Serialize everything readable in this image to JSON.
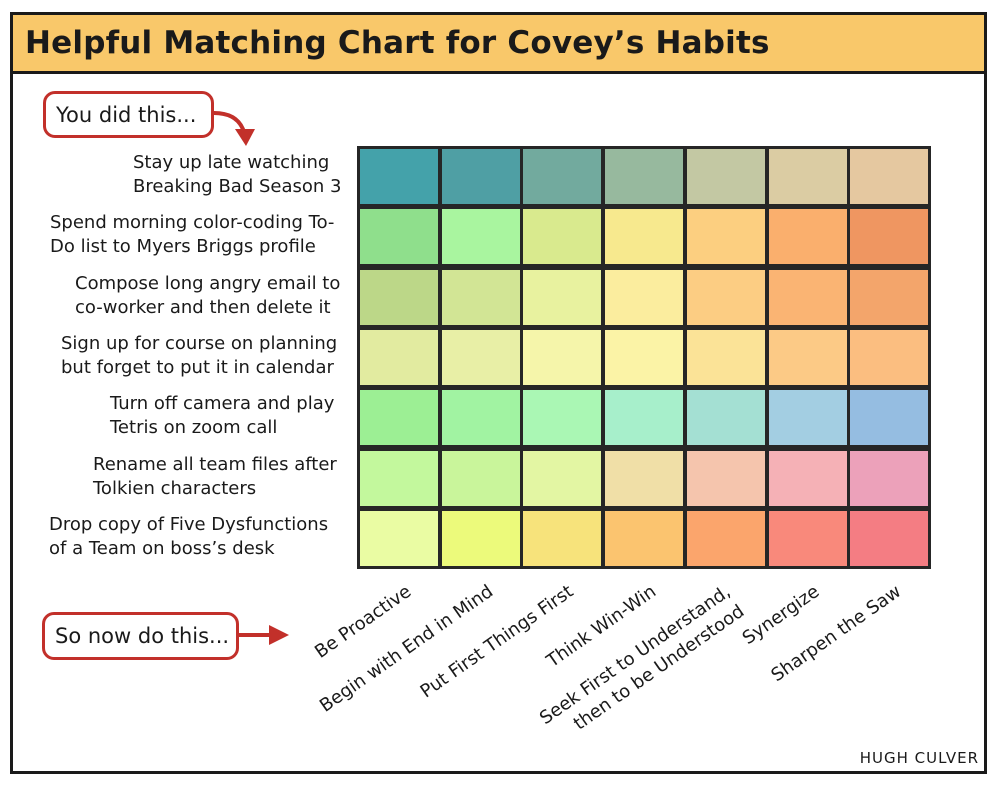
{
  "title": "Helpful Matching Chart for Covey’s Habits",
  "callout_top": "You did this...",
  "callout_bottom": "So now do this...",
  "credit": "HUGH CULVER",
  "chart_data": {
    "type": "heatmap",
    "rows": [
      [
        "Stay up late watching",
        "Breaking Bad Season 3"
      ],
      [
        "Spend morning color-coding To-",
        "Do list to Myers Briggs profile"
      ],
      [
        "Compose long angry email to",
        "co-worker and then delete it"
      ],
      [
        "Sign up for course on planning",
        "but forget to put it in calendar"
      ],
      [
        "Turn off camera and play",
        "Tetris on zoom call"
      ],
      [
        "Rename all team files after",
        "Tolkien characters"
      ],
      [
        "Drop copy of Five Dysfunctions",
        "of a Team on boss’s desk"
      ]
    ],
    "columns": [
      [
        "Be Proactive"
      ],
      [
        "Begin with End in Mind"
      ],
      [
        "Put First Things First"
      ],
      [
        "Think Win-Win"
      ],
      [
        "Seek First to Understand,",
        "then to be Understood"
      ],
      [
        "Synergize"
      ],
      [
        "Sharpen the Saw"
      ]
    ],
    "cell_colors": [
      [
        "#44a2aa",
        "#4f9fa4",
        "#72aa9e",
        "#97b99e",
        "#c3c8a3",
        "#dbcca3",
        "#e5c8a0"
      ],
      [
        "#8fdf8c",
        "#a9f59f",
        "#d9ea8e",
        "#f7e98e",
        "#fccf80",
        "#faaf6d",
        "#ef9661"
      ],
      [
        "#bcd788",
        "#d2e595",
        "#e8f29f",
        "#fbed9e",
        "#fccd83",
        "#fab473",
        "#f3a56b"
      ],
      [
        "#e2eba0",
        "#e8efa6",
        "#f5f5aa",
        "#fbf3a6",
        "#fbe397",
        "#fcca86",
        "#fbbe80"
      ],
      [
        "#9cef94",
        "#a1f3a2",
        "#aaf7b4",
        "#a7efcb",
        "#a4e0d3",
        "#a3cee2",
        "#95bde1"
      ],
      [
        "#c3f89d",
        "#c9f59b",
        "#e3f6a3",
        "#f0dfa7",
        "#f5c5ad",
        "#f5b1b6",
        "#eca1ba"
      ],
      [
        "#eafca3",
        "#ecfa7b",
        "#f7e37b",
        "#fbc46f",
        "#fba56c",
        "#f9897b",
        "#f47d83"
      ]
    ]
  }
}
